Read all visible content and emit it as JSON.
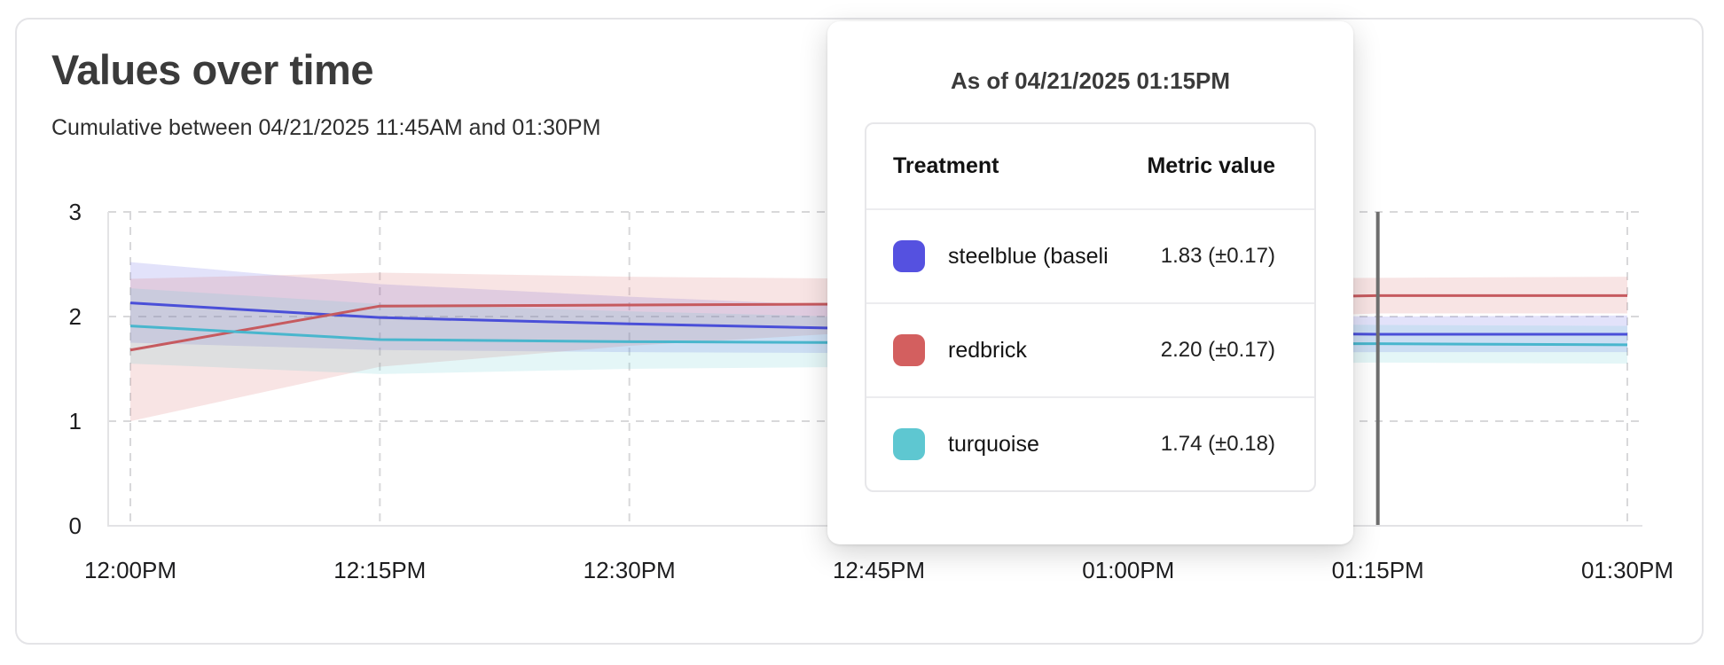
{
  "card": {
    "title": "Values over time",
    "subtitle": "Cumulative between 04/21/2025 11:45AM and 01:30PM"
  },
  "tooltip": {
    "title": "As of 04/21/2025 01:15PM",
    "columns": {
      "treatment": "Treatment",
      "metric": "Metric value"
    },
    "rows": [
      {
        "swatch_color": "#5551e0",
        "label": "steelblue  (baseli",
        "value": "1.83 (±0.17)"
      },
      {
        "swatch_color": "#d35f5f",
        "label": "redbrick",
        "value": "2.20 (±0.17)"
      },
      {
        "swatch_color": "#5ec7d1",
        "label": "turquoise",
        "value": "1.74 (±0.18)"
      }
    ]
  },
  "chart_data": {
    "type": "line",
    "title": "Values over time",
    "subtitle": "Cumulative between 04/21/2025 11:45AM and 01:30PM",
    "categories": [
      "12:00PM",
      "12:15PM",
      "12:30PM",
      "12:45PM",
      "01:00PM",
      "01:15PM",
      "01:30PM"
    ],
    "yticks": [
      0,
      1,
      2,
      3
    ],
    "ylim": [
      0,
      3
    ],
    "grid": "dashed",
    "legend_position": "none",
    "crosshair_x": "01:15PM",
    "series": [
      {
        "name": "steelblue-baseline",
        "color": "#4a4fd8",
        "band_color": "#5551e0",
        "values": [
          2.13,
          1.99,
          1.93,
          1.88,
          1.85,
          1.83,
          1.83
        ],
        "band_lower": [
          1.75,
          1.68,
          1.66,
          1.65,
          1.65,
          1.66,
          1.66
        ],
        "band_upper": [
          2.52,
          2.31,
          2.19,
          2.09,
          2.03,
          2.0,
          2.01
        ]
      },
      {
        "name": "redbrick",
        "color": "#c65a5f",
        "band_color": "#d35f5f",
        "values": [
          1.68,
          2.1,
          2.11,
          2.12,
          2.16,
          2.2,
          2.2
        ],
        "band_lower": [
          1.0,
          1.52,
          1.72,
          1.86,
          1.95,
          2.03,
          2.03
        ],
        "band_upper": [
          2.36,
          2.42,
          2.38,
          2.36,
          2.36,
          2.37,
          2.38
        ]
      },
      {
        "name": "turquoise",
        "color": "#49b6cd",
        "band_color": "#5ec7d1",
        "values": [
          1.91,
          1.78,
          1.76,
          1.75,
          1.74,
          1.74,
          1.73
        ],
        "band_lower": [
          1.55,
          1.45,
          1.5,
          1.52,
          1.54,
          1.56,
          1.55
        ],
        "band_upper": [
          2.27,
          2.12,
          2.05,
          1.99,
          1.94,
          1.92,
          1.91
        ]
      }
    ]
  }
}
